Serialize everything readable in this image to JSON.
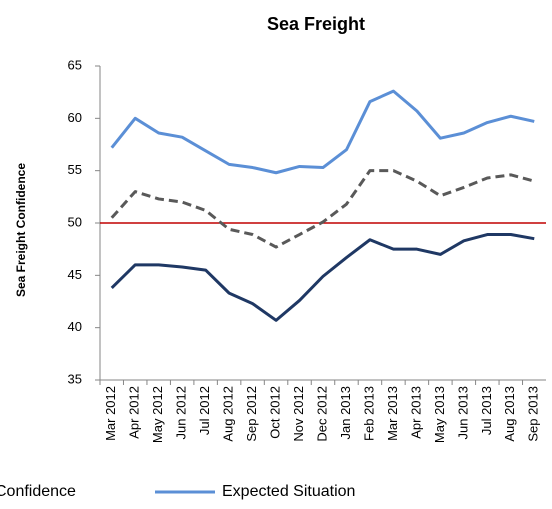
{
  "chart_data": {
    "type": "line",
    "title": "Sea Freight",
    "y_label": "Sea Freight Confidence",
    "categories": [
      "Mar 2012",
      "Apr 2012",
      "May 2012",
      "Jun 2012",
      "Jul 2012",
      "Aug 2012",
      "Sep 2012",
      "Oct 2012",
      "Nov 2012",
      "Dec 2012",
      "Jan 2013",
      "Feb 2013",
      "Mar 2013",
      "Apr 2013",
      "May 2013",
      "Jun 2013",
      "Jul 2013",
      "Aug 2013",
      "Sep 2013"
    ],
    "series": [
      {
        "color": "#1f3864",
        "dash": false,
        "values": [
          43.8,
          46,
          46,
          45.8,
          45.5,
          43.3,
          42.3,
          40.7,
          42.6,
          44.9,
          46.7,
          48.4,
          47.5,
          47.5,
          47,
          48.3,
          48.9,
          48.9,
          48.5
        ]
      },
      {
        "name": "Confidence",
        "color": "#595959",
        "dash": true,
        "values": [
          50.5,
          53,
          52.3,
          52,
          51.2,
          49.4,
          48.9,
          47.7,
          48.9,
          50.1,
          51.8,
          55,
          55,
          54,
          52.6,
          53.4,
          54.3,
          54.6,
          54
        ]
      },
      {
        "name": "Expected Situation",
        "color": "#5b8fd6",
        "dash": false,
        "values": [
          57.2,
          60,
          58.6,
          58.2,
          56.9,
          55.6,
          55.3,
          54.8,
          55.4,
          55.3,
          57,
          61.6,
          62.6,
          60.7,
          58.1,
          58.6,
          59.6,
          60.2,
          59.7
        ]
      }
    ],
    "reference_line": {
      "value": 50,
      "color": "#c00000"
    },
    "ylim": [
      35,
      65
    ],
    "yticks": [
      35,
      40,
      45,
      50,
      55,
      60,
      65
    ]
  }
}
